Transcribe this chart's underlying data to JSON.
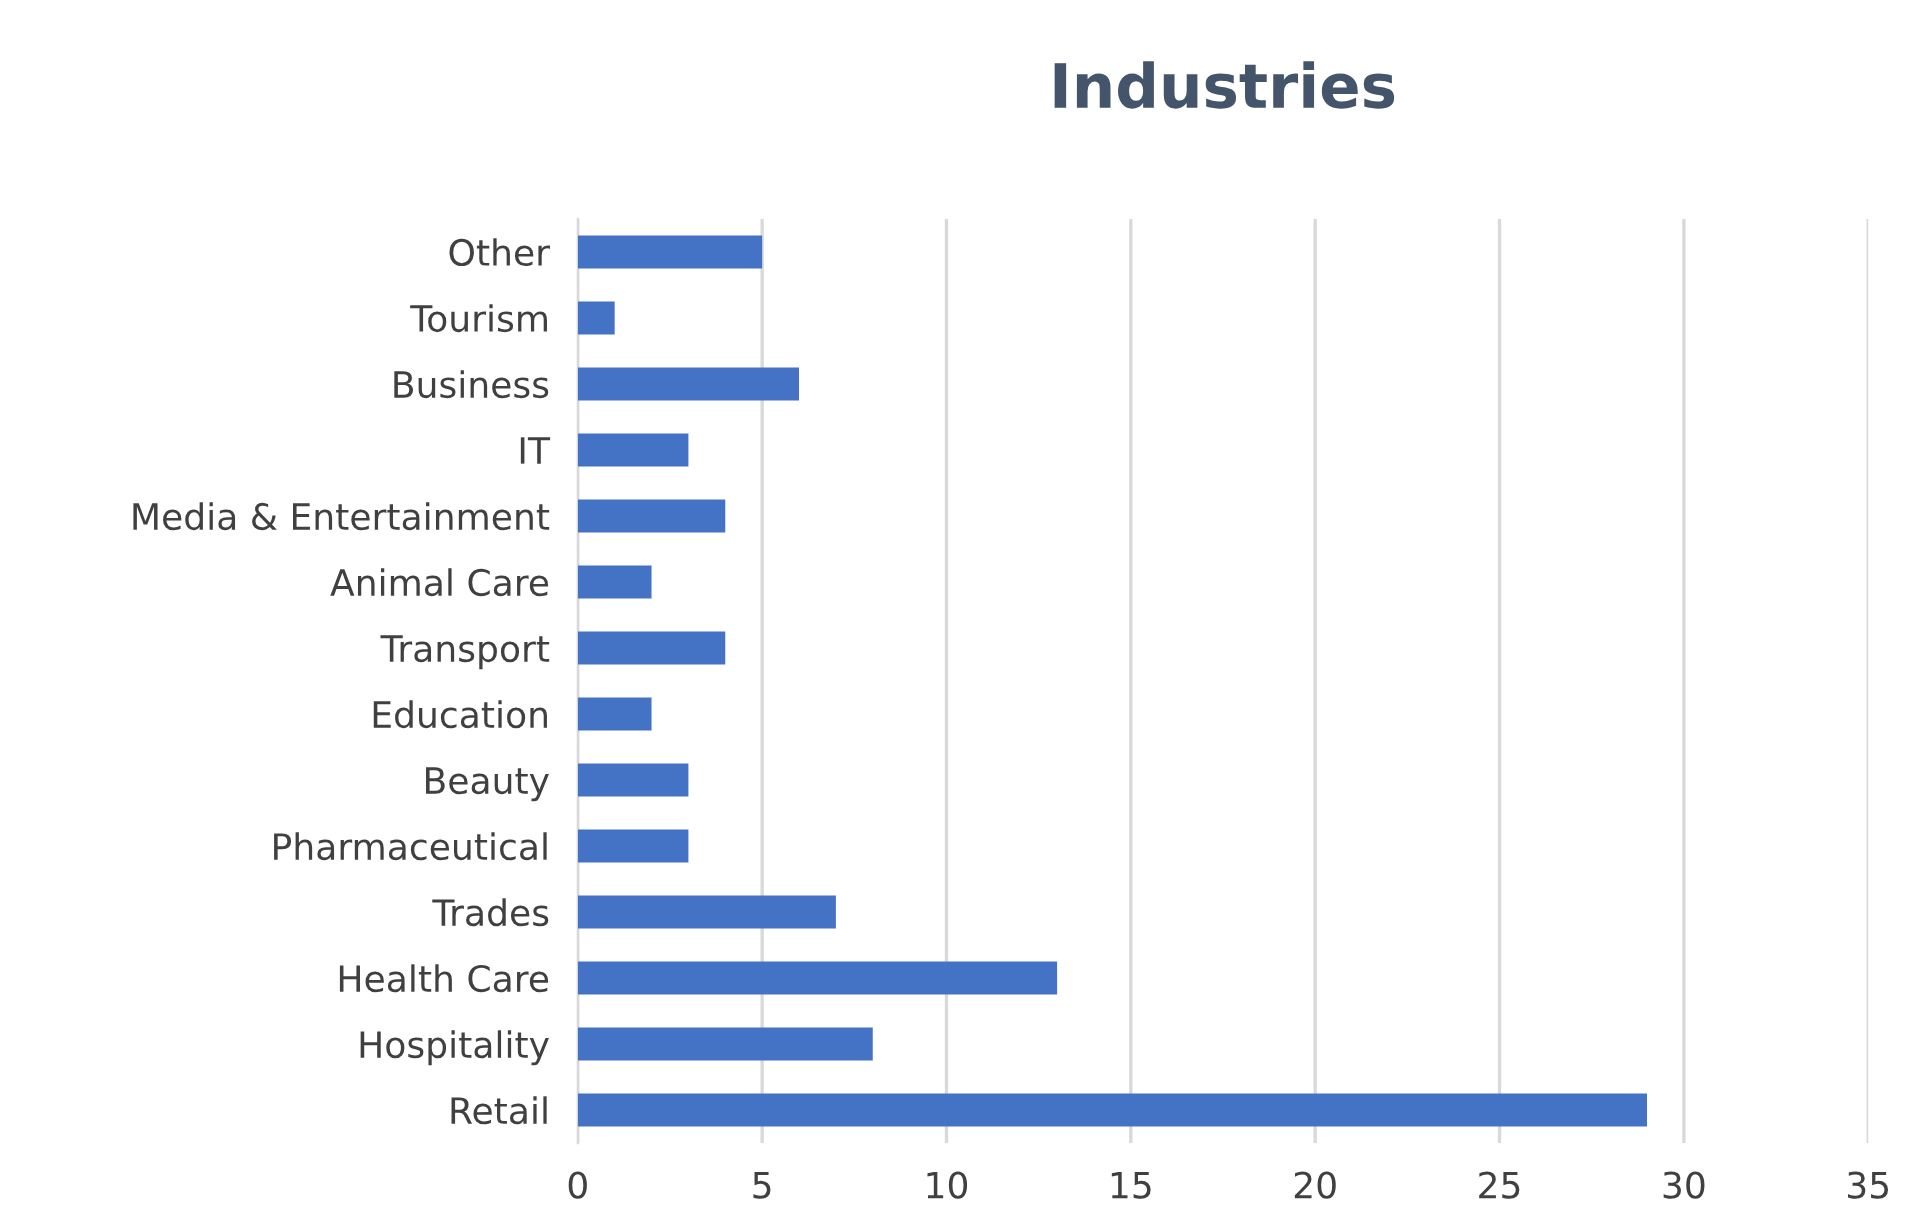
{
  "chart_data": {
    "type": "bar",
    "orientation": "horizontal",
    "title": "Industries",
    "categories": [
      "Other",
      "Tourism",
      "Business",
      "IT",
      "Media & Entertainment",
      "Animal Care",
      "Transport",
      "Education",
      "Beauty",
      "Pharmaceutical",
      "Trades",
      "Health Care",
      "Hospitality",
      "Retail"
    ],
    "values": [
      5,
      1,
      6,
      3,
      4,
      2,
      4,
      2,
      3,
      3,
      7,
      13,
      8,
      29
    ],
    "color": "#4472c4",
    "xlim": [
      0,
      35
    ],
    "xticks": [
      0,
      5,
      10,
      15,
      20,
      25,
      30,
      35
    ],
    "grid": "x"
  }
}
